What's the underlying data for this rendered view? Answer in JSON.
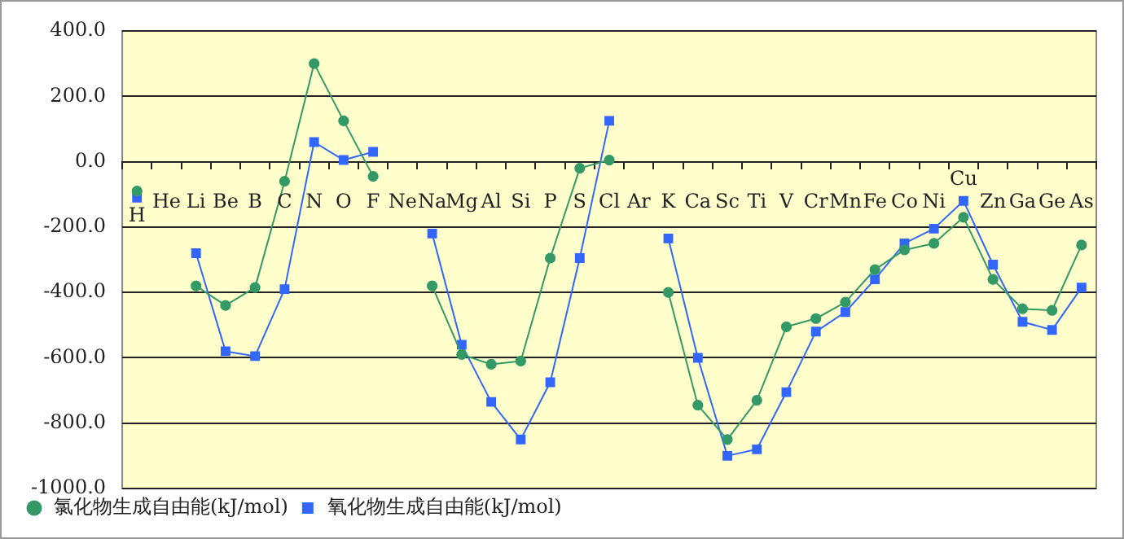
{
  "chart_data": {
    "type": "line",
    "categories": [
      "H",
      "He",
      "Li",
      "Be",
      "B",
      "C",
      "N",
      "O",
      "F",
      "Ne",
      "Na",
      "Mg",
      "Al",
      "Si",
      "P",
      "S",
      "Cl",
      "Ar",
      "K",
      "Ca",
      "Sc",
      "Ti",
      "V",
      "Cr",
      "Mn",
      "Fe",
      "Co",
      "Ni",
      "Cu",
      "Zn",
      "Ga",
      "Ge",
      "As"
    ],
    "series": [
      {
        "name": "氯化物生成自由能(kJ/mol)",
        "color": "#339966",
        "marker": "circle",
        "values": [
          -90,
          null,
          -380,
          -440,
          -385,
          -60,
          300,
          125,
          -45,
          null,
          -380,
          -590,
          -620,
          -610,
          -295,
          -20,
          5,
          null,
          -400,
          -745,
          -850,
          -730,
          -505,
          -480,
          -430,
          -330,
          -270,
          -250,
          -170,
          -360,
          -450,
          -455,
          -255
        ]
      },
      {
        "name": "氧化物生成自由能(kJ/mol)",
        "color": "#3366ff",
        "marker": "square",
        "values": [
          -110,
          null,
          -280,
          -580,
          -595,
          -390,
          60,
          5,
          30,
          null,
          -220,
          -560,
          -735,
          -850,
          -675,
          -295,
          125,
          null,
          -235,
          -600,
          -900,
          -880,
          -705,
          -520,
          -460,
          -360,
          -250,
          -205,
          -120,
          -315,
          -490,
          -515,
          -385
        ]
      }
    ],
    "ylim": [
      -1000,
      400
    ],
    "yticks": [
      {
        "value": -1000,
        "label": "-1000.0"
      },
      {
        "value": -800,
        "label": "-800.0"
      },
      {
        "value": -600,
        "label": "-600.0"
      },
      {
        "value": -400,
        "label": "-400.0"
      },
      {
        "value": -200,
        "label": "-200.0"
      },
      {
        "value": 0,
        "label": "0.0"
      },
      {
        "value": 200,
        "label": "200.0"
      },
      {
        "value": 400,
        "label": "400.0"
      }
    ],
    "grid": "y",
    "legend": "bottom left",
    "line_style": "solid"
  }
}
